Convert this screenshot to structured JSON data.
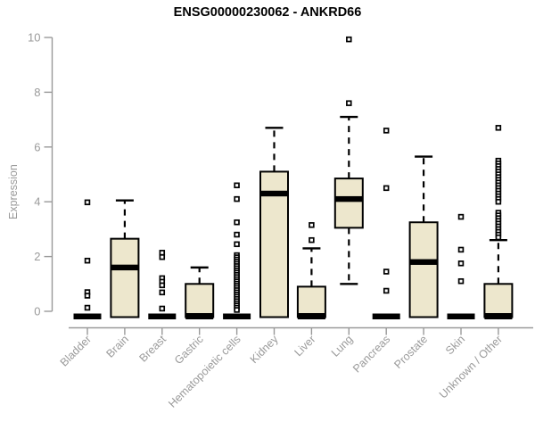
{
  "chart_data": {
    "type": "boxplot",
    "title": "ENSG00000230062 - ANKRD66",
    "ylabel": "Expression",
    "xlabel": "",
    "ylim": [
      0,
      10
    ],
    "y_ticks": [
      0,
      2,
      4,
      6,
      8,
      10
    ],
    "grid": false,
    "legend": "none",
    "colors": {
      "box_fill": "#EDE7CD",
      "box_line": "#000000",
      "axis": "#999999",
      "tick_text": "#9a9a9a",
      "title_text": "#000000",
      "background": "#ffffff"
    },
    "categories": [
      "Bladder",
      "Brain",
      "Breast",
      "Gastric",
      "Hematopoietic cells",
      "Kidney",
      "Liver",
      "Lung",
      "Pancreas",
      "Prostate",
      "Skin",
      "Unknown / Other"
    ],
    "boxes": [
      {
        "category": "Bladder",
        "q1": 0,
        "median": 0,
        "q3": 0,
        "whisker_low": 0,
        "whisker_high": 0,
        "outliers": [
          3.98,
          1.85,
          0.7,
          0.57,
          0.13
        ]
      },
      {
        "category": "Brain",
        "q1": 0,
        "median": 1.6,
        "q3": 2.65,
        "whisker_low": 0,
        "whisker_high": 4.05,
        "outliers": []
      },
      {
        "category": "Breast",
        "q1": 0,
        "median": 0,
        "q3": 0,
        "whisker_low": 0,
        "whisker_high": 0,
        "outliers": [
          2.14,
          1.98,
          1.21,
          1.08,
          0.95,
          0.69,
          0.1
        ]
      },
      {
        "category": "Gastric",
        "q1": 0,
        "median": 0,
        "q3": 1.0,
        "whisker_low": 0,
        "whisker_high": 1.6,
        "outliers": []
      },
      {
        "category": "Hematopoietic cells",
        "q1": 0,
        "median": 0,
        "q3": 0,
        "whisker_low": 0,
        "whisker_high": 0,
        "outliers": [
          4.6,
          4.1,
          3.25,
          2.8,
          2.45,
          2.05,
          1.97,
          1.89,
          1.81,
          1.73,
          1.65,
          1.57,
          1.49,
          1.41,
          1.33,
          1.25,
          1.17,
          1.09,
          1.01,
          0.93,
          0.85,
          0.77,
          0.69,
          0.61,
          0.53,
          0.45,
          0.37,
          0.29,
          0.21,
          0.13,
          0.05
        ]
      },
      {
        "category": "Kidney",
        "q1": 0,
        "median": 4.3,
        "q3": 5.1,
        "whisker_low": 0,
        "whisker_high": 6.7,
        "outliers": []
      },
      {
        "category": "Liver",
        "q1": 0,
        "median": 0,
        "q3": 0.9,
        "whisker_low": 0,
        "whisker_high": 2.3,
        "outliers": [
          3.15,
          2.6
        ]
      },
      {
        "category": "Lung",
        "q1": 3.05,
        "median": 4.1,
        "q3": 4.85,
        "whisker_low": 1.0,
        "whisker_high": 7.1,
        "outliers": [
          9.93,
          7.6
        ]
      },
      {
        "category": "Pancreas",
        "q1": 0,
        "median": 0,
        "q3": 0,
        "whisker_low": 0,
        "whisker_high": 0,
        "outliers": [
          6.6,
          4.5,
          1.45,
          0.75
        ]
      },
      {
        "category": "Prostate",
        "q1": 0,
        "median": 1.8,
        "q3": 3.25,
        "whisker_low": 0,
        "whisker_high": 5.65,
        "outliers": []
      },
      {
        "category": "Skin",
        "q1": 0,
        "median": 0,
        "q3": 0,
        "whisker_low": 0,
        "whisker_high": 0,
        "outliers": [
          3.45,
          2.25,
          1.75,
          1.1
        ]
      },
      {
        "category": "Unknown / Other",
        "q1": 0,
        "median": 0,
        "q3": 1.0,
        "whisker_low": 0,
        "whisker_high": 2.6,
        "outliers": [
          6.7,
          5.5,
          5.4,
          5.3,
          5.2,
          5.1,
          5.0,
          4.9,
          4.8,
          4.7,
          4.6,
          4.5,
          4.4,
          4.3,
          4.2,
          4.1,
          4.0,
          3.6,
          3.5,
          3.4,
          3.3,
          3.2,
          3.1,
          3.0,
          2.9,
          2.8,
          2.7
        ]
      }
    ]
  }
}
